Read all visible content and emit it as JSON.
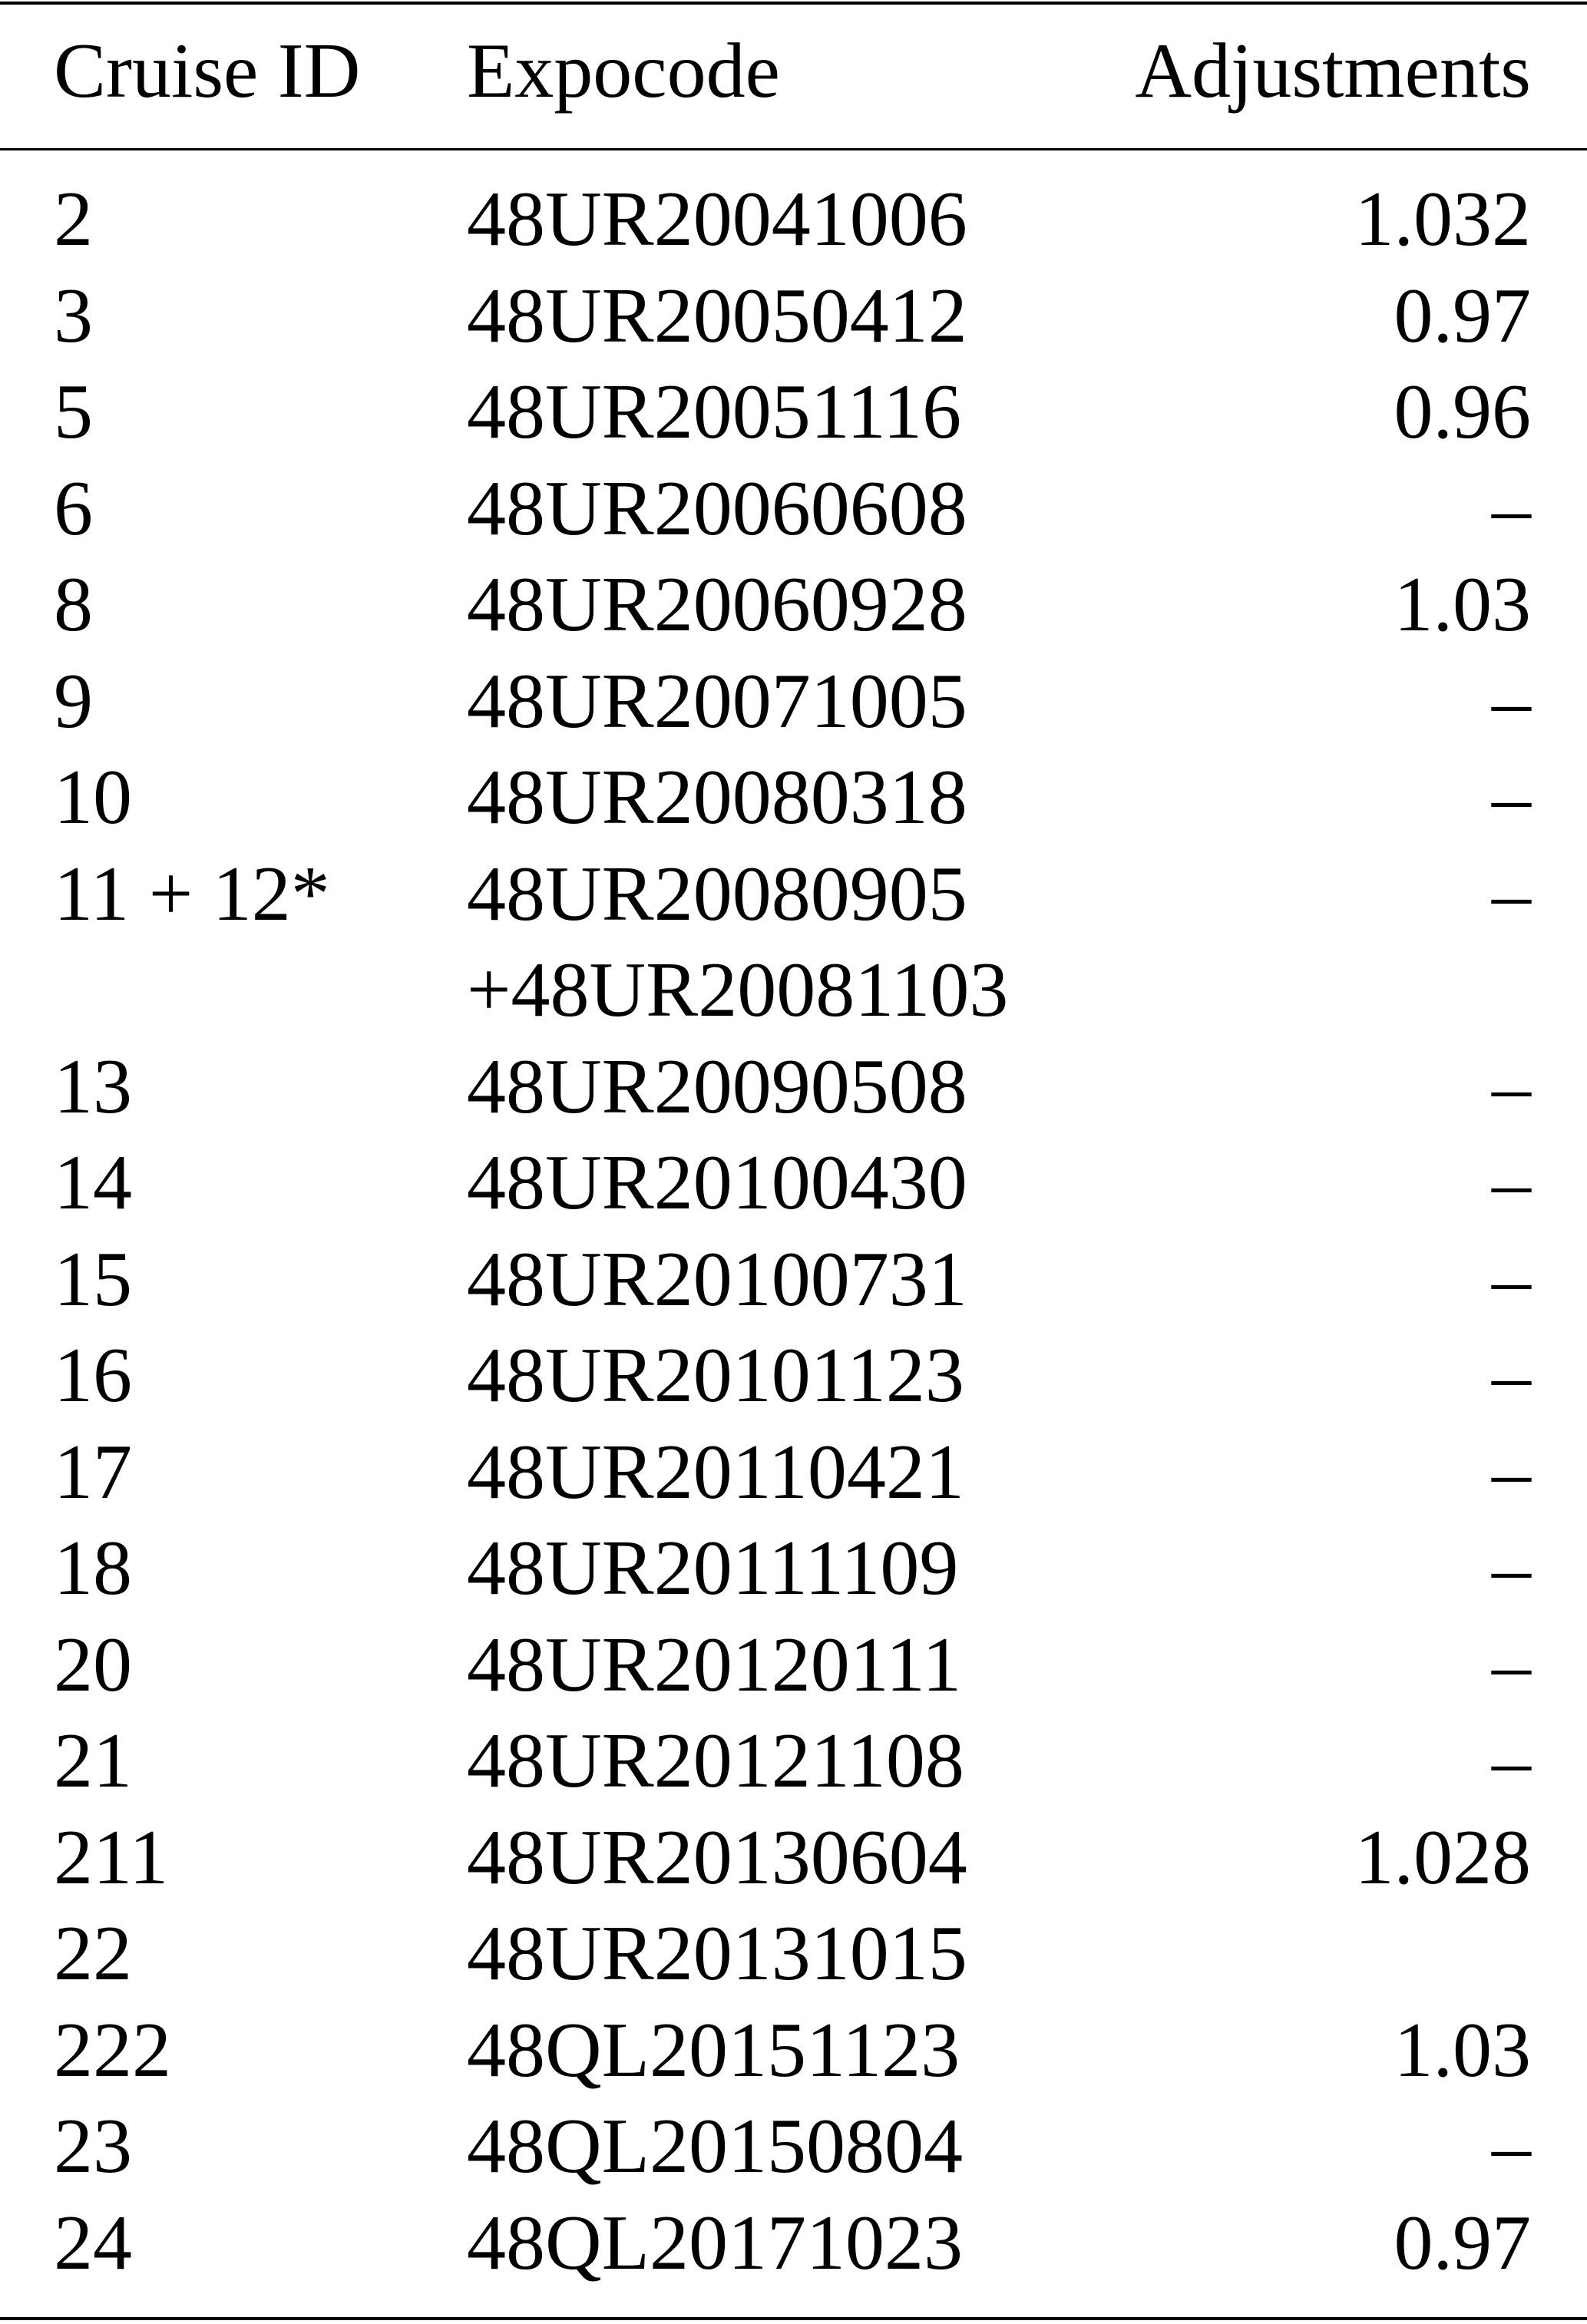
{
  "table": {
    "headers": [
      "Cruise ID",
      "Expocode",
      "Adjustments"
    ],
    "rows": [
      {
        "id": "2",
        "expocode": "48UR20041006",
        "adjustment": "1.032"
      },
      {
        "id": "3",
        "expocode": "48UR20050412",
        "adjustment": "0.97"
      },
      {
        "id": "5",
        "expocode": "48UR20051116",
        "adjustment": "0.96"
      },
      {
        "id": "6",
        "expocode": "48UR20060608",
        "adjustment": "–"
      },
      {
        "id": "8",
        "expocode": "48UR20060928",
        "adjustment": "1.03"
      },
      {
        "id": "9",
        "expocode": "48UR20071005",
        "adjustment": "–"
      },
      {
        "id": "10",
        "expocode": "48UR20080318",
        "adjustment": "–"
      },
      {
        "id": "11 + 12*",
        "expocode": "48UR20080905",
        "adjustment": "–"
      },
      {
        "id": "",
        "expocode": "+48UR20081103",
        "adjustment": ""
      },
      {
        "id": "13",
        "expocode": "48UR20090508",
        "adjustment": "–"
      },
      {
        "id": "14",
        "expocode": "48UR20100430",
        "adjustment": "–"
      },
      {
        "id": "15",
        "expocode": "48UR20100731",
        "adjustment": "–"
      },
      {
        "id": "16",
        "expocode": "48UR20101123",
        "adjustment": "–"
      },
      {
        "id": "17",
        "expocode": "48UR20110421",
        "adjustment": "–"
      },
      {
        "id": "18",
        "expocode": "48UR20111109",
        "adjustment": "–"
      },
      {
        "id": "20",
        "expocode": "48UR20120111",
        "adjustment": "–"
      },
      {
        "id": "21",
        "expocode": "48UR20121108",
        "adjustment": "–"
      },
      {
        "id": "211",
        "expocode": "48UR20130604",
        "adjustment": "1.028"
      },
      {
        "id": "22",
        "expocode": "48UR20131015",
        "adjustment": "–"
      },
      {
        "id": "222",
        "expocode": "48QL20151123",
        "adjustment": "1.03"
      },
      {
        "id": "23",
        "expocode": "48QL20150804",
        "adjustment": "–"
      },
      {
        "id": "24",
        "expocode": "48QL20171023",
        "adjustment": "0.97"
      }
    ]
  }
}
